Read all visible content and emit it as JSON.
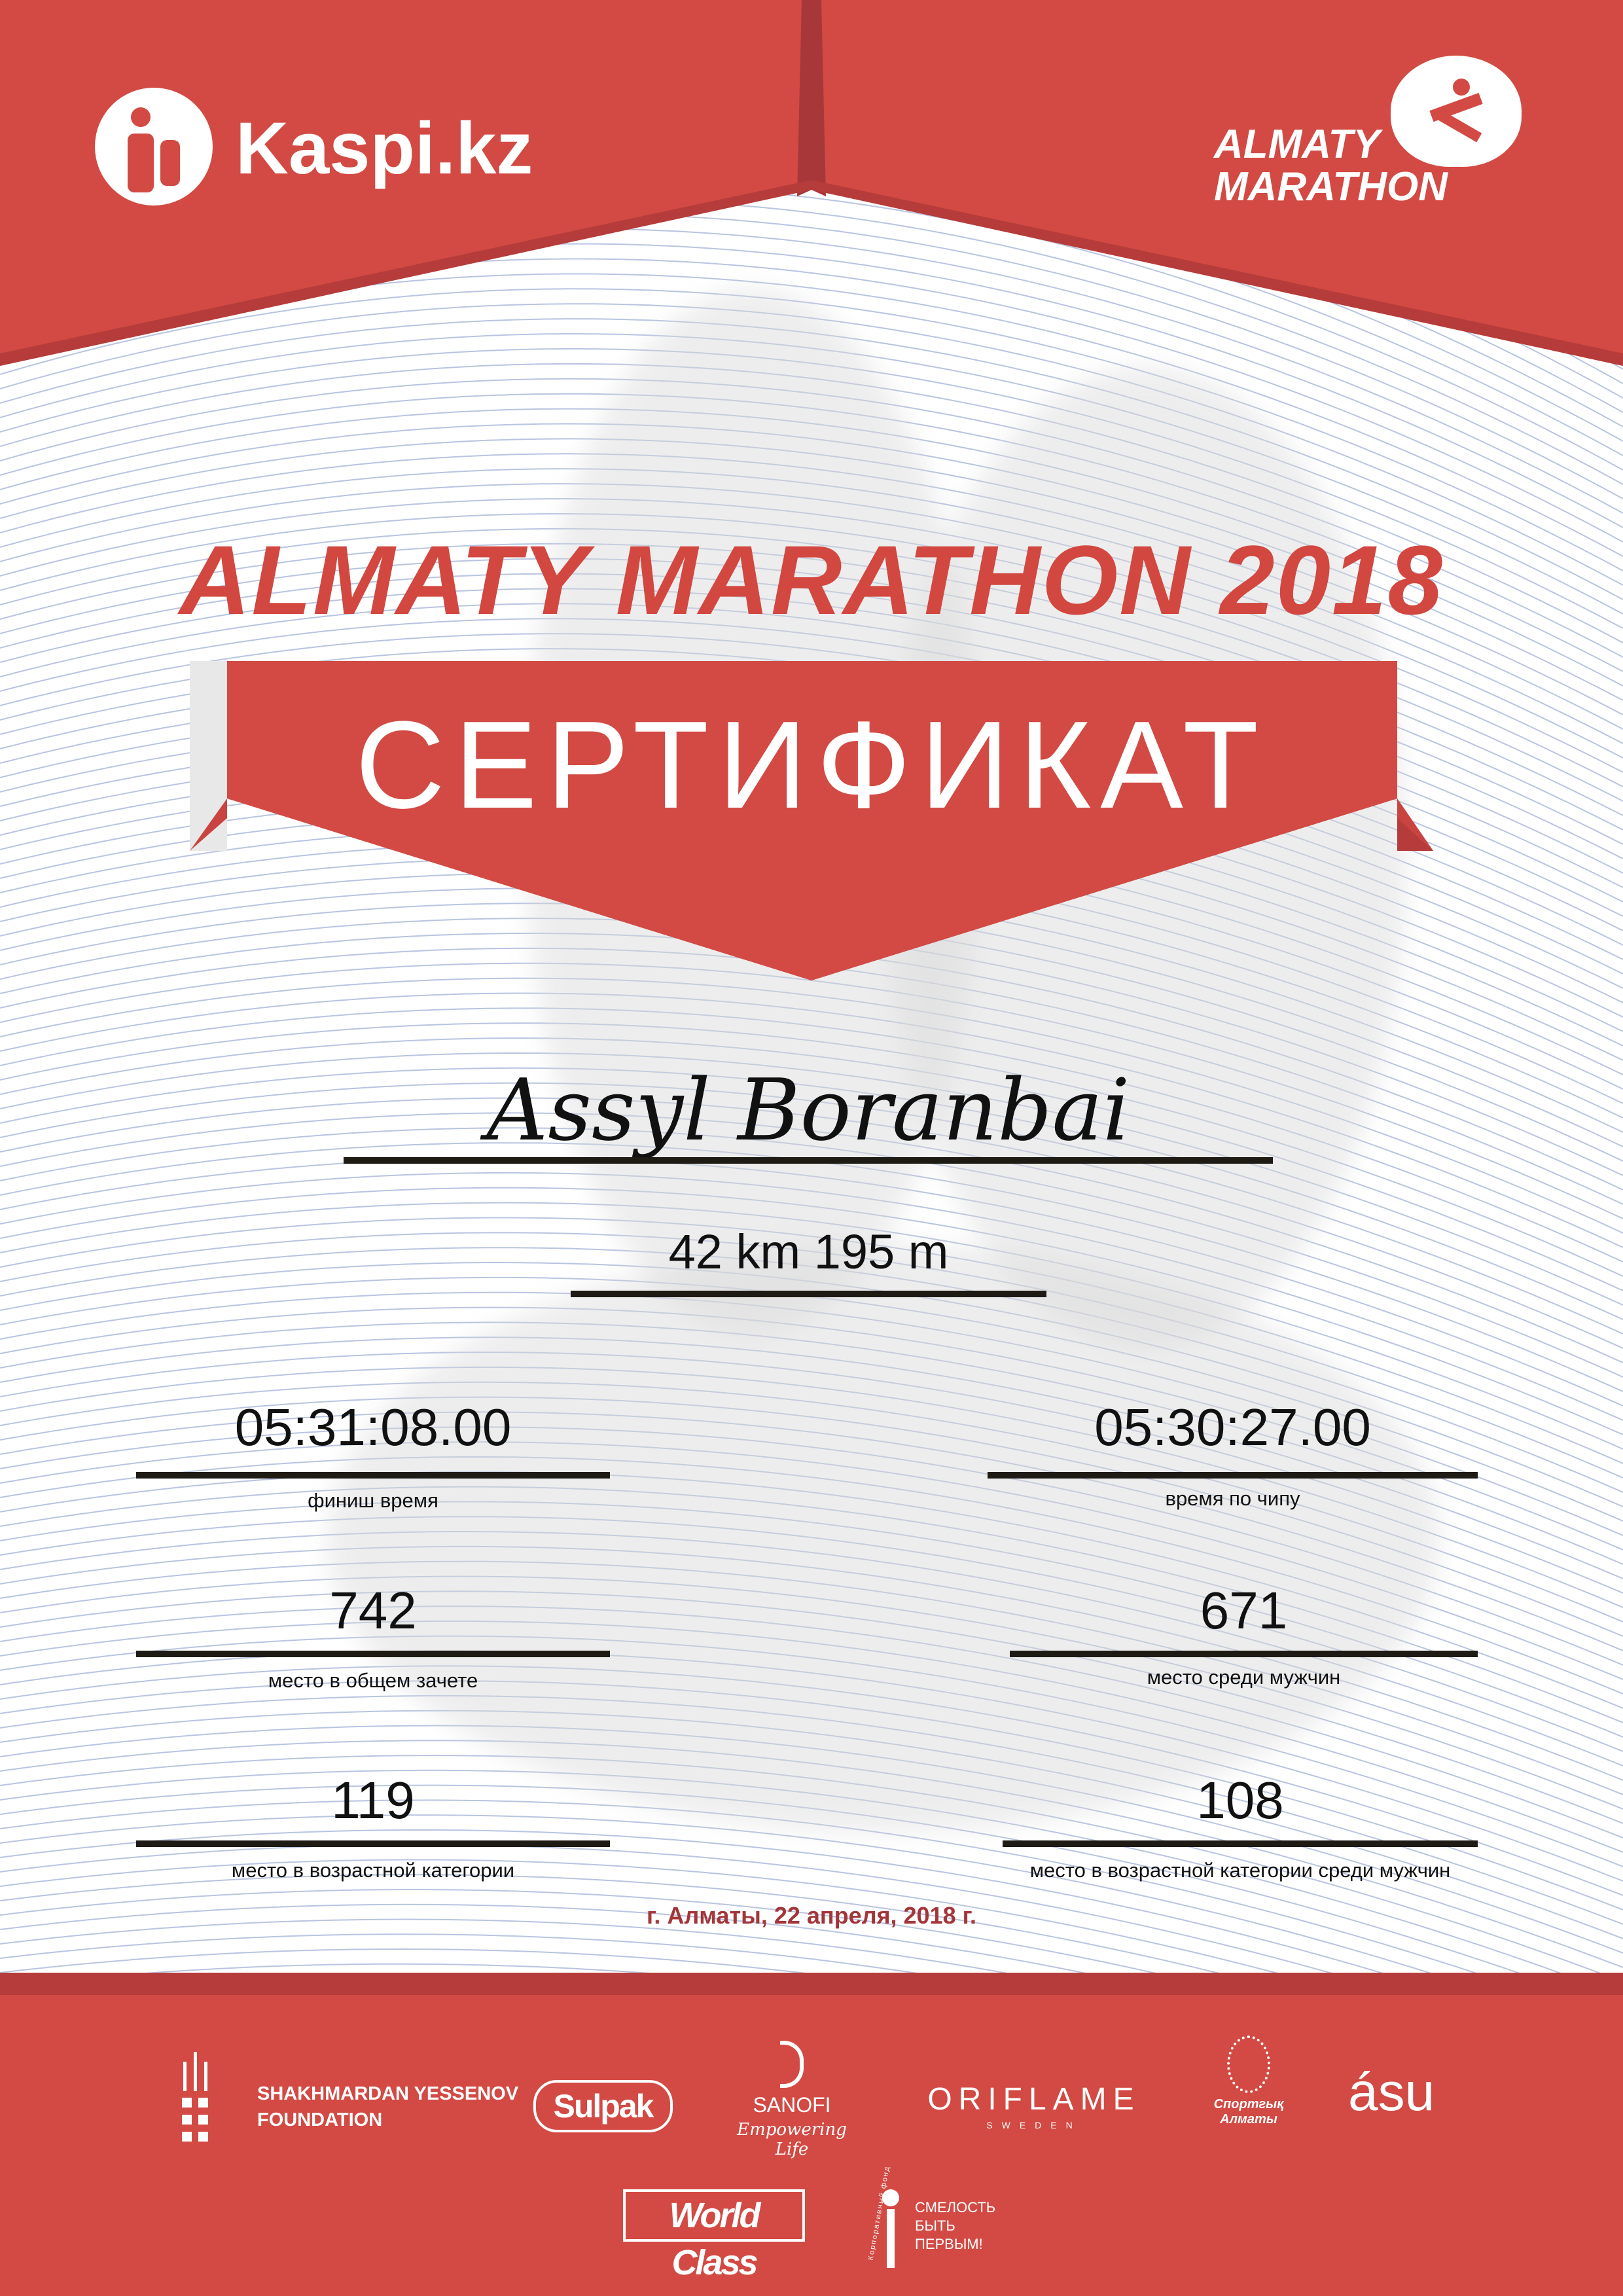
{
  "header": {
    "sponsor_logo": "Kaspi.kz",
    "event_logo_line1": "ALMATY",
    "event_logo_line2": "MARATHON"
  },
  "title": "ALMATY MARATHON 2018",
  "banner": "СЕРТИФИКАТ",
  "participant": {
    "name": "Assyl Boranbai",
    "distance": "42 km 195 m"
  },
  "results": [
    {
      "value": "05:31:08.00",
      "label": "финиш время"
    },
    {
      "value": "05:30:27.00",
      "label": "время по чипу"
    },
    {
      "value": "742",
      "label": "место в общем зачете"
    },
    {
      "value": "671",
      "label": "место среди мужчин"
    },
    {
      "value": "119",
      "label": "место в возрастной категории"
    },
    {
      "value": "108",
      "label": "место в возрастной категории среди мужчин"
    }
  ],
  "date_place": "г. Алматы, 22 апреля, 2018 г.",
  "sponsors": {
    "yessenov_line1": "SHAKHMARDAN YESSENOV",
    "yessenov_line2": "FOUNDATION",
    "sulpak": "Sulpak",
    "sanofi": "SANOFI",
    "sanofi_tagline": "Empowering Life",
    "oriflame": "ORIFLAME",
    "oriflame_sub": "SWEDEN",
    "sport_almaty": "Спортгық Алматы",
    "asu": "ásu",
    "worldclass": "World Class",
    "fund_line1": "СМЕЛОСТЬ",
    "fund_line2": "БЫТЬ",
    "fund_line3": "ПЕРВЫМ!",
    "fund_arc": "Корпоративный фонд"
  },
  "colors": {
    "primary_red": "#d24a43",
    "dark_red": "#a3363a",
    "line_blue": "#b8c4e0"
  }
}
